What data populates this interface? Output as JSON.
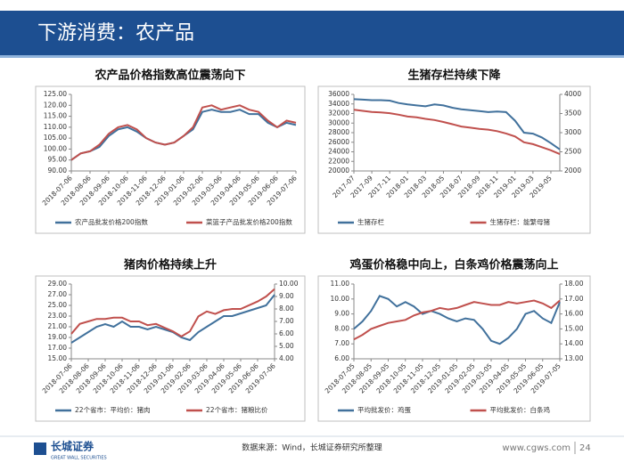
{
  "header": {
    "title": "下游消费：农产品"
  },
  "footer": {
    "logo": "长城证券",
    "logo_en": "GREAT WALL SECURITIES",
    "source": "数据来源：Wind，长城证券研究所整理",
    "site": "www.cgws.com",
    "page": "24"
  },
  "chart_data": [
    {
      "type": "line",
      "title": "农产品价格指数高位震荡向下",
      "categories": [
        "2018-07-06",
        null,
        "2018-08-06",
        null,
        "2018-09-06",
        null,
        "2018-10-06",
        null,
        "2018-11-06",
        null,
        "2018-12-06",
        null,
        "2019-01-06",
        null,
        "2019-02-06",
        null,
        "2019-03-06",
        null,
        "2019-04-06",
        null,
        "2019-05-06",
        null,
        "2019-06-06",
        null,
        "2019-07-06"
      ],
      "ylim": [
        90,
        125
      ],
      "yticks": [
        {
          "value": 90,
          "label": "90.00"
        },
        {
          "value": 95,
          "label": "95.00"
        },
        {
          "value": 100,
          "label": "100.00"
        },
        {
          "value": 105,
          "label": "105.00"
        },
        {
          "value": 110,
          "label": "110.00"
        },
        {
          "value": 115,
          "label": "115.00"
        },
        {
          "value": 120,
          "label": "120.00"
        },
        {
          "value": 125,
          "label": "125.00"
        }
      ],
      "series": [
        {
          "name": "农产品批发价格200指数",
          "color": "#41719c",
          "values": [
            95,
            98,
            99,
            101,
            106,
            109,
            110,
            108,
            105,
            103,
            102,
            103,
            106,
            109,
            117,
            118,
            117,
            117,
            118,
            116,
            116,
            112,
            110,
            112,
            111
          ]
        },
        {
          "name": "菜篮子产品批发价格200指数",
          "color": "#c0504d",
          "values": [
            95,
            98,
            99,
            102,
            107,
            110,
            111,
            109,
            105,
            103,
            102,
            103,
            106,
            110,
            119,
            120,
            118,
            119,
            120,
            118,
            117,
            113,
            110,
            113,
            112
          ]
        }
      ]
    },
    {
      "type": "line",
      "title": "生猪存栏持续下降",
      "categories": [
        "2017-07",
        null,
        "2017-09",
        null,
        "2017-11",
        null,
        "2018-01",
        null,
        "2018-03",
        null,
        "2018-05",
        null,
        "2018-07",
        null,
        "2018-09",
        null,
        "2018-11",
        null,
        "2019-01",
        null,
        "2019-03",
        null,
        "2019-05",
        null
      ],
      "ylim": [
        20000,
        36000
      ],
      "yticks": [
        20000,
        22000,
        24000,
        26000,
        28000,
        30000,
        32000,
        34000,
        36000
      ],
      "y2lim": [
        2000,
        4000
      ],
      "y2ticks": [
        2000,
        2500,
        3000,
        3500,
        4000
      ],
      "series": [
        {
          "name": "生猪存栏",
          "color": "#41719c",
          "values": [
            35000,
            34900,
            34800,
            34800,
            34700,
            34200,
            33900,
            33700,
            33500,
            33900,
            33700,
            33200,
            32900,
            32700,
            32500,
            32300,
            32400,
            32300,
            30500,
            28000,
            27800,
            27000,
            25800,
            24500
          ]
        },
        {
          "name": "生猪存栏：能繁母猪",
          "color": "#c0504d",
          "axis": "y2",
          "values": [
            3600,
            3570,
            3540,
            3530,
            3510,
            3470,
            3420,
            3400,
            3360,
            3330,
            3280,
            3220,
            3160,
            3130,
            3100,
            3080,
            3040,
            2980,
            2900,
            2750,
            2700,
            2620,
            2540,
            2440
          ]
        }
      ]
    },
    {
      "type": "line",
      "title": "猪肉价格持续上升",
      "categories": [
        "2018-07-06",
        null,
        "2018-08-06",
        null,
        "2018-09-06",
        null,
        "2018-10-06",
        null,
        "2018-11-06",
        null,
        "2018-12-06",
        null,
        "2019-01-06",
        null,
        "2019-02-06",
        null,
        "2019-03-06",
        null,
        "2019-04-06",
        null,
        "2019-05-06",
        null,
        "2019-06-06",
        null,
        "2019-07-06"
      ],
      "ylim": [
        15,
        29
      ],
      "yticks": [
        {
          "value": 15,
          "label": "15.00"
        },
        {
          "value": 17,
          "label": "17.00"
        },
        {
          "value": 19,
          "label": "19.00"
        },
        {
          "value": 21,
          "label": "21.00"
        },
        {
          "value": 23,
          "label": "23.00"
        },
        {
          "value": 25,
          "label": "25.00"
        },
        {
          "value": 27,
          "label": "27.00"
        },
        {
          "value": 29,
          "label": "29.00"
        }
      ],
      "y2lim": [
        4,
        10
      ],
      "y2ticks": [
        {
          "value": 4,
          "label": "4.00"
        },
        {
          "value": 5,
          "label": "5.00"
        },
        {
          "value": 6,
          "label": "6.00"
        },
        {
          "value": 7,
          "label": "7.00"
        },
        {
          "value": 8,
          "label": "8.00"
        },
        {
          "value": 9,
          "label": "9.00"
        },
        {
          "value": 10,
          "label": "10.00"
        }
      ],
      "series": [
        {
          "name": "22个省市：平均价：猪肉",
          "color": "#41719c",
          "values": [
            18,
            19,
            20,
            21,
            21.5,
            21,
            22,
            21,
            21,
            20.5,
            21,
            20.5,
            20,
            19,
            18.5,
            20,
            21,
            22,
            23,
            23,
            23.5,
            24,
            24.5,
            25,
            27
          ]
        },
        {
          "name": "22个省市：猪粮比价",
          "color": "#c0504d",
          "axis": "y2",
          "values": [
            6.0,
            6.8,
            7.0,
            7.2,
            7.2,
            7.3,
            7.3,
            7.0,
            7.0,
            6.7,
            6.8,
            6.5,
            6.2,
            5.8,
            6.2,
            7.4,
            7.8,
            7.6,
            7.9,
            8.0,
            8.0,
            8.3,
            8.6,
            9.0,
            9.6
          ]
        }
      ]
    },
    {
      "type": "line",
      "title": "鸡蛋价格稳中向上，白条鸡价格震荡向上",
      "categories": [
        "2018-07-05",
        null,
        "2018-08-05",
        null,
        "2018-09-05",
        null,
        "2018-10-05",
        null,
        "2018-11-05",
        null,
        "2018-12-05",
        null,
        "2019-01-05",
        null,
        "2019-02-05",
        null,
        "2019-03-05",
        null,
        "2019-04-05",
        null,
        "2019-05-05",
        null,
        "2019-06-05",
        null,
        "2019-07-05"
      ],
      "ylim": [
        6,
        11
      ],
      "yticks": [
        {
          "value": 6,
          "label": "6.00"
        },
        {
          "value": 7,
          "label": "7.00"
        },
        {
          "value": 8,
          "label": "8.00"
        },
        {
          "value": 9,
          "label": "9.00"
        },
        {
          "value": 10,
          "label": "10.00"
        },
        {
          "value": 11,
          "label": "11.00"
        }
      ],
      "y2lim": [
        13,
        18
      ],
      "y2ticks": [
        {
          "value": 13,
          "label": "13.00"
        },
        {
          "value": 14,
          "label": "14.00"
        },
        {
          "value": 15,
          "label": "15.00"
        },
        {
          "value": 16,
          "label": "16.00"
        },
        {
          "value": 17,
          "label": "17.00"
        },
        {
          "value": 18,
          "label": "18.00"
        }
      ],
      "series": [
        {
          "name": "平均批发价：鸡蛋",
          "color": "#41719c",
          "values": [
            8.0,
            8.5,
            9.2,
            10.2,
            10.0,
            9.5,
            9.8,
            9.5,
            9.0,
            9.2,
            9.0,
            8.7,
            8.5,
            8.7,
            8.6,
            8.0,
            7.2,
            7.0,
            7.4,
            8.0,
            9.0,
            9.2,
            8.7,
            8.4,
            9.8
          ]
        },
        {
          "name": "平均批发价：白条鸡",
          "color": "#c0504d",
          "axis": "y2",
          "values": [
            14.3,
            14.6,
            15.0,
            15.2,
            15.4,
            15.5,
            15.6,
            15.9,
            16.1,
            16.2,
            16.4,
            16.3,
            16.4,
            16.6,
            16.8,
            16.7,
            16.6,
            16.6,
            16.8,
            16.7,
            16.8,
            16.9,
            16.7,
            16.4,
            16.9
          ]
        }
      ]
    }
  ]
}
